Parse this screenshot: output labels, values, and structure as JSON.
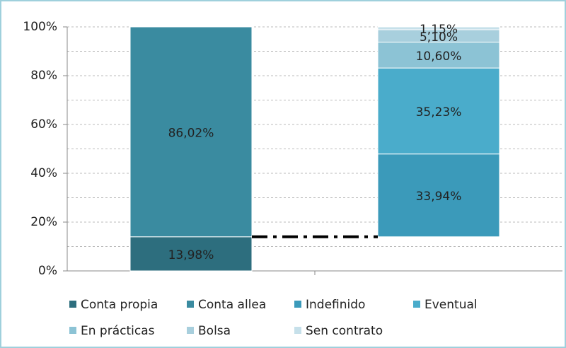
{
  "chart_data": {
    "type": "stacked_bar",
    "categories": [
      null,
      null
    ],
    "series": [
      {
        "name": "Conta propia",
        "color": "#2d6e7e",
        "values": [
          13.98,
          null
        ],
        "value_labels": [
          "13,98%",
          null
        ]
      },
      {
        "name": "Conta allea",
        "color": "#3a8ba0",
        "values": [
          86.02,
          null
        ],
        "value_labels": [
          "86,02%",
          null
        ]
      },
      {
        "name": "Indefinido",
        "color": "#3b9aba",
        "values": [
          null,
          33.94
        ],
        "value_labels": [
          null,
          "33,94%"
        ]
      },
      {
        "name": "Eventual",
        "color": "#4aaccb",
        "values": [
          null,
          35.23
        ],
        "value_labels": [
          null,
          "35,23%"
        ]
      },
      {
        "name": "En prácticas",
        "color": "#8cc3d5",
        "values": [
          null,
          10.6
        ],
        "value_labels": [
          null,
          "10,60%"
        ]
      },
      {
        "name": "Bolsa",
        "color": "#a8cfdd",
        "values": [
          null,
          5.1
        ],
        "value_labels": [
          null,
          "5,10%"
        ]
      },
      {
        "name": "Sen contrato",
        "color": "#c6e0ea",
        "values": [
          null,
          1.15
        ],
        "value_labels": [
          null,
          "1,15%"
        ]
      }
    ],
    "ylim": [
      0,
      100
    ],
    "yticks": [
      {
        "value": 0,
        "label": "0%"
      },
      {
        "value": 20,
        "label": "20%"
      },
      {
        "value": 40,
        "label": "40%"
      },
      {
        "value": 60,
        "label": "60%"
      },
      {
        "value": 80,
        "label": "80%"
      },
      {
        "value": 100,
        "label": "100%"
      }
    ],
    "minor_yticks": [
      10,
      30,
      50,
      70,
      90
    ],
    "grid": true,
    "legend": "bottom"
  }
}
